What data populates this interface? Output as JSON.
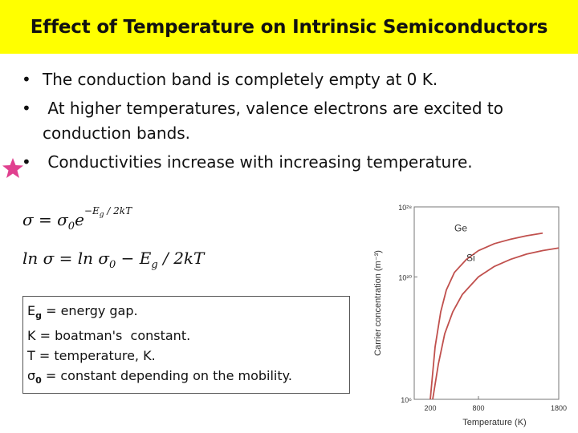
{
  "title": "Effect of Temperature on Intrinsic Semiconductors",
  "bullet_marker": "•",
  "bullets": [
    "The conduction band is completely empty at 0 K.",
    " At higher temperatures, valence electrons are excited to conduction bands.",
    " Conductivities increase with increasing temperature."
  ],
  "star_color": "#e0408f",
  "formulas": {
    "f1_lhs": "σ = σ",
    "f1_sub": "0",
    "f1_exp_a": "e",
    "f1_exp": "−E",
    "f1_exp_sub": "g",
    "f1_exp_tail": " / 2kT",
    "f2_lhs": "ln σ = ln σ",
    "f2_sub": "0",
    "f2_mid": " − E",
    "f2_sub2": "g",
    "f2_tail": " / 2kT"
  },
  "definitions": [
    {
      "sym": "E",
      "sub": "g",
      "text": " = energy gap."
    },
    {
      "sym": "K",
      "sub": "",
      "text": " = boatman's  constant."
    },
    {
      "sym": "T",
      "sub": "",
      "text": " = temperature, K."
    },
    {
      "sym": "σ",
      "sub": "0",
      "text": " = constant depending on the mobility."
    }
  ],
  "chart_data": {
    "type": "line",
    "xlabel": "Temperature (K)",
    "ylabel": "Carrier concentration (m⁻³)",
    "xlim": [
      0,
      1800
    ],
    "x_ticks": [
      "200",
      "800",
      "1800"
    ],
    "y_ticks": [
      "10²⁸",
      "10²⁰",
      "10⁶"
    ],
    "y_log": true,
    "series": [
      {
        "name": "Ge",
        "color": "#c0504d",
        "x": [
          200,
          260,
          330,
          400,
          500,
          650,
          800,
          1000,
          1200,
          1400,
          1600
        ],
        "y_exp": [
          6,
          12,
          16,
          18.5,
          20.5,
          22,
          23,
          23.8,
          24.3,
          24.7,
          25
        ]
      },
      {
        "name": "Si",
        "color": "#c0504d",
        "x": [
          230,
          300,
          380,
          480,
          600,
          800,
          1000,
          1200,
          1400,
          1600,
          1800
        ],
        "y_exp": [
          6,
          10,
          13.5,
          16,
          18,
          20,
          21.2,
          22,
          22.6,
          23,
          23.3
        ]
      }
    ]
  }
}
